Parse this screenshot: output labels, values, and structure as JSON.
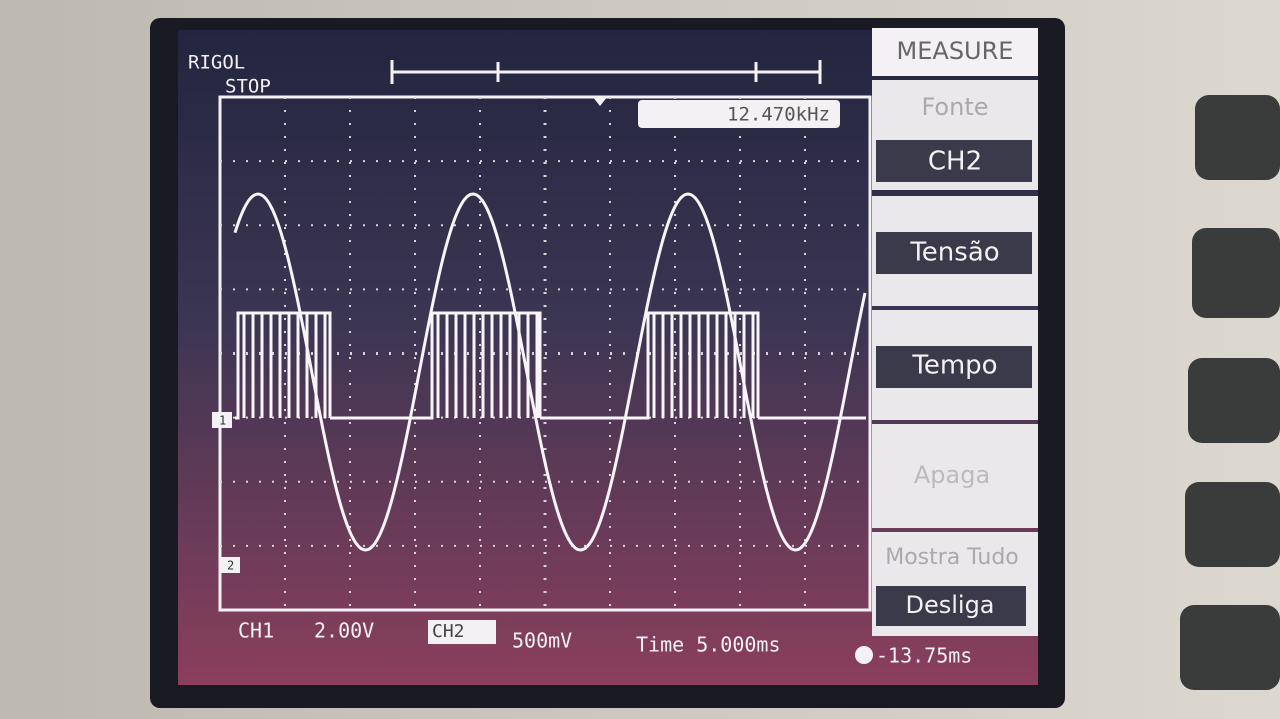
{
  "header": {
    "brand": "RIGOL",
    "status": "STOP"
  },
  "readout": "12.470kHz",
  "menu": {
    "title": "MEASURE",
    "items": [
      {
        "label": "Fonte",
        "value": "CH2"
      },
      {
        "label": "Tensão"
      },
      {
        "label": "Tempo"
      },
      {
        "label": "Apaga"
      },
      {
        "label": "Mostra Tudo",
        "value": "Desliga"
      }
    ]
  },
  "markers": [
    "1",
    "2"
  ],
  "status_bar": {
    "ch1": "CH1",
    "ch1_scale": "2.00V",
    "ch2": "CH2",
    "ch2_scale": "500mV",
    "time": "Time 5.000ms",
    "trigger_offset": "-13.75ms"
  }
}
